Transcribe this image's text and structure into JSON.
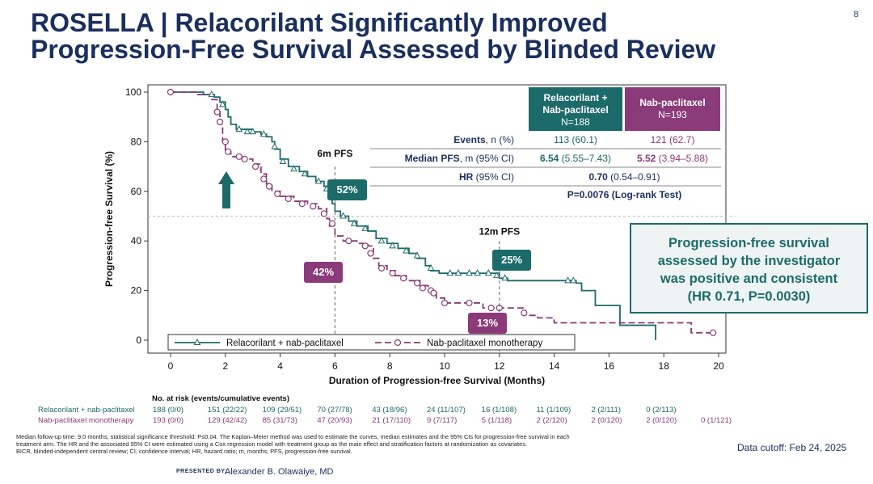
{
  "slide": {
    "title_line1": "ROSELLA | Relacorilant Significantly Improved",
    "title_line2": "Progression-Free Survival Assessed by Blinded Review",
    "slide_number": "8"
  },
  "chart_data": {
    "type": "line",
    "subtype": "kaplan-meier",
    "xlabel": "Duration of Progression-free Survival (Months)",
    "ylabel": "Progression-free Survival (%)",
    "xlim": [
      0,
      20
    ],
    "ylim": [
      0,
      100
    ],
    "x_ticks": [
      0,
      2,
      4,
      6,
      8,
      10,
      12,
      14,
      16,
      18,
      20
    ],
    "y_ticks": [
      0,
      20,
      40,
      60,
      80,
      100
    ],
    "series": [
      {
        "name": "Relacorilant + nab-paclitaxel",
        "color": "#1d6a6a",
        "marker": "triangle",
        "steps": [
          [
            0,
            100
          ],
          [
            1.2,
            99
          ],
          [
            1.6,
            98
          ],
          [
            1.8,
            96
          ],
          [
            2.0,
            93
          ],
          [
            2.1,
            90
          ],
          [
            2.2,
            87
          ],
          [
            2.4,
            85
          ],
          [
            3.0,
            84
          ],
          [
            3.3,
            83
          ],
          [
            3.5,
            82
          ],
          [
            3.7,
            80
          ],
          [
            3.8,
            77
          ],
          [
            4.0,
            73
          ],
          [
            4.3,
            70
          ],
          [
            4.7,
            68
          ],
          [
            5.0,
            66
          ],
          [
            5.3,
            64
          ],
          [
            5.6,
            62
          ],
          [
            5.8,
            58
          ],
          [
            5.9,
            55
          ],
          [
            6.0,
            52
          ],
          [
            6.2,
            50
          ],
          [
            6.5,
            48
          ],
          [
            6.8,
            46
          ],
          [
            7.2,
            44
          ],
          [
            7.5,
            41
          ],
          [
            7.9,
            39
          ],
          [
            8.3,
            37
          ],
          [
            8.7,
            35
          ],
          [
            9.0,
            33
          ],
          [
            9.3,
            30
          ],
          [
            9.5,
            28
          ],
          [
            9.8,
            27
          ],
          [
            12.0,
            25
          ],
          [
            12.3,
            24
          ],
          [
            14.8,
            23
          ],
          [
            15.0,
            20
          ],
          [
            15.5,
            14
          ],
          [
            16.4,
            6
          ],
          [
            17.7,
            0
          ]
        ],
        "censors": [
          [
            1.5,
            99
          ],
          [
            1.9,
            95
          ],
          [
            2.5,
            85
          ],
          [
            2.8,
            84
          ],
          [
            3.0,
            84
          ],
          [
            3.4,
            83
          ],
          [
            3.8,
            78
          ],
          [
            4.1,
            72
          ],
          [
            4.5,
            69
          ],
          [
            4.9,
            67
          ],
          [
            5.4,
            64
          ],
          [
            5.7,
            61
          ],
          [
            6.3,
            50
          ],
          [
            6.7,
            47
          ],
          [
            7.1,
            45
          ],
          [
            7.7,
            40
          ],
          [
            8.1,
            38
          ],
          [
            8.6,
            36
          ],
          [
            9.0,
            34
          ],
          [
            9.5,
            29
          ],
          [
            10.2,
            27
          ],
          [
            10.5,
            27
          ],
          [
            10.9,
            27
          ],
          [
            11.2,
            27
          ],
          [
            11.6,
            27
          ],
          [
            11.9,
            26
          ],
          [
            12.2,
            25
          ],
          [
            14.5,
            24
          ],
          [
            14.7,
            24
          ]
        ]
      },
      {
        "name": "Nab-paclitaxel monotherapy",
        "color": "#8b3a7a",
        "marker": "circle",
        "steps": [
          [
            0,
            100
          ],
          [
            1.0,
            99
          ],
          [
            1.5,
            97
          ],
          [
            1.7,
            93
          ],
          [
            1.8,
            87
          ],
          [
            1.9,
            80
          ],
          [
            2.0,
            76
          ],
          [
            2.2,
            74
          ],
          [
            2.6,
            73
          ],
          [
            3.0,
            71
          ],
          [
            3.3,
            67
          ],
          [
            3.5,
            63
          ],
          [
            3.7,
            60
          ],
          [
            4.0,
            58
          ],
          [
            4.5,
            56
          ],
          [
            5.0,
            55
          ],
          [
            5.4,
            53
          ],
          [
            5.7,
            49
          ],
          [
            5.8,
            46
          ],
          [
            6.0,
            42
          ],
          [
            6.3,
            40
          ],
          [
            6.8,
            39
          ],
          [
            7.2,
            38
          ],
          [
            7.4,
            33
          ],
          [
            7.6,
            30
          ],
          [
            7.9,
            28
          ],
          [
            8.2,
            26
          ],
          [
            8.6,
            24
          ],
          [
            9.1,
            22
          ],
          [
            9.4,
            20
          ],
          [
            9.7,
            17
          ],
          [
            10.0,
            15
          ],
          [
            11.4,
            13
          ],
          [
            12.9,
            10
          ],
          [
            13.4,
            9
          ],
          [
            14.0,
            7
          ],
          [
            19.0,
            3
          ],
          [
            19.8,
            3
          ]
        ],
        "censors": [
          [
            0,
            100
          ],
          [
            1.7,
            92
          ],
          [
            1.8,
            88
          ],
          [
            2.0,
            80
          ],
          [
            2.1,
            76
          ],
          [
            2.5,
            74
          ],
          [
            2.7,
            73
          ],
          [
            3.1,
            70
          ],
          [
            3.4,
            65
          ],
          [
            3.6,
            62
          ],
          [
            3.9,
            59
          ],
          [
            4.3,
            57
          ],
          [
            4.8,
            55
          ],
          [
            5.2,
            54
          ],
          [
            5.6,
            51
          ],
          [
            5.9,
            47
          ],
          [
            6.5,
            40
          ],
          [
            7.1,
            38
          ],
          [
            7.3,
            35
          ],
          [
            7.7,
            29
          ],
          [
            8.1,
            27
          ],
          [
            8.5,
            25
          ],
          [
            9.0,
            23
          ],
          [
            9.2,
            21
          ],
          [
            9.5,
            20
          ],
          [
            9.6,
            19
          ],
          [
            10.0,
            15
          ],
          [
            10.9,
            15
          ],
          [
            11.7,
            13
          ],
          [
            12.0,
            13
          ],
          [
            12.9,
            11
          ],
          [
            19.8,
            3
          ]
        ]
      }
    ],
    "annotations": {
      "pfs6_label": "6m PFS",
      "pfs12_label": "12m PFS",
      "pfs6_rela": "52%",
      "pfs6_nab": "42%",
      "pfs12_rela": "25%",
      "pfs12_nab": "13%"
    },
    "legend": {
      "position": "bottom-left",
      "rela": "Relacorilant + nab-paclitaxel",
      "nab": "Nab-paclitaxel monotherapy"
    }
  },
  "stats_table": {
    "header_rela": "Relacorilant +",
    "header_rela2": "Nab-paclitaxel",
    "header_rela_n": "N=188",
    "header_nab": "Nab-paclitaxel",
    "header_nab_n": "N=193",
    "events_label": "Events",
    "events_unit": ", n (%)",
    "events_rela": "113 (60.1)",
    "events_nab": "121 (62.7)",
    "median_label": "Median PFS",
    "median_unit": ", m (95% CI)",
    "median_rela_val": "6.54",
    "median_rela_ci": " (5.55–7.43)",
    "median_nab_val": "5.52",
    "median_nab_ci": " (3.94–5.88)",
    "hr_label": "HR",
    "hr_unit": " (95% CI)",
    "hr_val": "0.70",
    "hr_ci": " (0.54–0.91)",
    "pvalue": "P=0.0076 (Log-rank Test)"
  },
  "investigator_box": {
    "line1": "Progression-free survival",
    "line2": "assessed by the investigator",
    "line3": "was positive and consistent",
    "line4": "(HR 0.71, P=0.0030)"
  },
  "risk_table": {
    "title": "No. at risk (events/cumulative events)",
    "rela_label": "Relacorilant + nab-paclitaxel",
    "nab_label": "Nab-paclitaxel monotherapy",
    "rela_values": [
      "188 (0/0)",
      "151 (22/22)",
      "109 (29/51)",
      "70 (27/78)",
      "43 (18/96)",
      "24 (11/107)",
      "16 (1/108)",
      "11 (1/109)",
      "2 (2/111)",
      "0 (2/113)"
    ],
    "nab_values": [
      "193 (0/0)",
      "129 (42/42)",
      "85 (31/73)",
      "47 (20/93)",
      "21 (17/110)",
      "9 (7/117)",
      "5 (1/118)",
      "2 (2/120)",
      "2 (0/120)",
      "2 (0/120)",
      "0 (1/121)"
    ]
  },
  "footer": {
    "footnote1": "Median follow-up time: 9.0 months; statistical significance threshold: P≤0.04. The Kaplan–Meier method was used to estimate the curves, median estimates and the 95% CIs for progression-free survival in each",
    "footnote2": "treatment arm. The HR and the associated 95% CI were estimated using a Cox regression model with treatment group as the main effect and stratification factors at randomization as covariates.",
    "footnote3": "BICR, blinded-independent central review; CI, confidence interval; HR, hazard ratio; m, months; PFS, progression-free survival.",
    "cutoff": "Data cutoff: Feb 24, 2025",
    "presented_by": "PRESENTED BY:",
    "presenter": "Alexander B. Olawaiye, MD"
  }
}
